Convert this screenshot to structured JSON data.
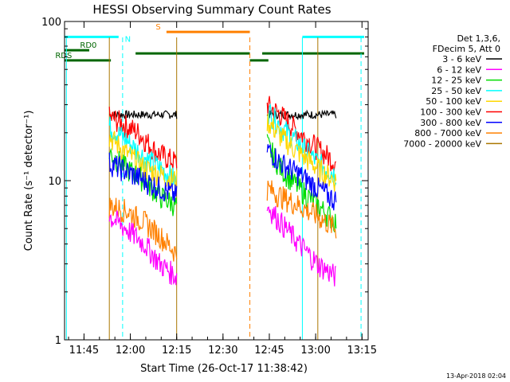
{
  "chart_data": {
    "type": "line",
    "title": "HESSI Observing Summary Count Rates",
    "xlabel": "Start Time (26-Oct-17 11:38:42)",
    "ylabel": "Count Rate (s⁻¹ detector⁻¹)",
    "ylog": true,
    "ylim": [
      1,
      100
    ],
    "xlim": [
      "11:38:42",
      "13:17:00"
    ],
    "x_unit": "minutes since 11:38:42",
    "x_range_min": [
      0,
      98.3
    ],
    "x_ticks": [
      {
        "label": "11:45",
        "t": 6.3
      },
      {
        "label": "12:00",
        "t": 21.3
      },
      {
        "label": "12:15",
        "t": 36.3
      },
      {
        "label": "12:30",
        "t": 51.3
      },
      {
        "label": "12:45",
        "t": 66.3
      },
      {
        "label": "13:00",
        "t": 81.3
      },
      {
        "label": "13:15",
        "t": 96.3
      }
    ],
    "y_ticks": [
      {
        "label": "1",
        "v": 1
      },
      {
        "label": "10",
        "v": 10
      },
      {
        "label": "100",
        "v": 100
      }
    ],
    "legend": {
      "placement": "right",
      "header": [
        "Det 1,3,6,",
        "FDecim 5, Att 0"
      ],
      "entries": [
        {
          "label": "3 - 6 keV",
          "color": "#000000"
        },
        {
          "label": "6 - 12 keV",
          "color": "#ff00ff"
        },
        {
          "label": "12 - 25 keV",
          "color": "#00dd00"
        },
        {
          "label": "25 - 50 keV",
          "color": "#00ffff"
        },
        {
          "label": "50 - 100 keV",
          "color": "#ffd700"
        },
        {
          "label": "100 - 300 keV",
          "color": "#ff0000"
        },
        {
          "label": "300 - 800 keV",
          "color": "#0000ff"
        },
        {
          "label": "800 - 7000 keV",
          "color": "#ff8000"
        },
        {
          "label": "7000 - 20000 keV",
          "color": "#aa7700"
        }
      ]
    },
    "intervals": [
      {
        "start": 14.5,
        "end": 36.3
      },
      {
        "start": 65.6,
        "end": 87.9
      }
    ],
    "series": [
      {
        "name": "3 - 6 keV",
        "color": "#000000",
        "segments": [
          [
            [
              14.5,
              26
            ],
            [
              36.3,
              26
            ]
          ],
          [
            [
              65.6,
              26
            ],
            [
              87.9,
              26
            ]
          ]
        ]
      },
      {
        "name": "100 - 300 keV",
        "color": "#ff0000",
        "segments": [
          [
            [
              14.5,
              25
            ],
            [
              17,
              24
            ],
            [
              24,
              20
            ],
            [
              30,
              15
            ],
            [
              36.3,
              13
            ]
          ],
          [
            [
              65.6,
              30
            ],
            [
              70,
              26
            ],
            [
              76,
              20
            ],
            [
              82,
              16
            ],
            [
              87.9,
              13
            ]
          ]
        ]
      },
      {
        "name": "25 - 50 keV",
        "color": "#00ffff",
        "segments": [
          [
            [
              14.5,
              22
            ],
            [
              20,
              18
            ],
            [
              26,
              14
            ],
            [
              31,
              12
            ],
            [
              36.3,
              10
            ]
          ],
          [
            [
              65.6,
              28
            ],
            [
              70,
              22
            ],
            [
              76,
              17
            ],
            [
              82,
              13
            ],
            [
              87.9,
              11
            ]
          ]
        ]
      },
      {
        "name": "50 - 100 keV",
        "color": "#ffd700",
        "segments": [
          [
            [
              14.5,
              19
            ],
            [
              20,
              15
            ],
            [
              26,
              12
            ],
            [
              36.3,
              10
            ]
          ],
          [
            [
              65.6,
              24
            ],
            [
              70,
              19
            ],
            [
              76,
              15
            ],
            [
              82,
              12
            ],
            [
              87.9,
              10
            ]
          ]
        ]
      },
      {
        "name": "12 - 25 keV",
        "color": "#00dd00",
        "segments": [
          [
            [
              14.5,
              15
            ],
            [
              20,
              12
            ],
            [
              26,
              10
            ],
            [
              31,
              8
            ],
            [
              36.3,
              7
            ]
          ],
          [
            [
              65.6,
              17
            ],
            [
              70,
              12
            ],
            [
              76,
              9
            ],
            [
              82,
              7
            ],
            [
              87.9,
              5.5
            ]
          ]
        ]
      },
      {
        "name": "300 - 800 keV",
        "color": "#0000ff",
        "segments": [
          [
            [
              14.5,
              13
            ],
            [
              20,
              11.5
            ],
            [
              26,
              10
            ],
            [
              31,
              9
            ],
            [
              36.3,
              8
            ]
          ],
          [
            [
              65.6,
              16
            ],
            [
              70,
              13
            ],
            [
              76,
              11
            ],
            [
              82,
              9
            ],
            [
              87.9,
              7.5
            ]
          ]
        ]
      },
      {
        "name": "800 - 7000 keV",
        "color": "#ff8000",
        "segments": [
          [
            [
              14.5,
              7
            ],
            [
              20,
              6.5
            ],
            [
              26,
              5.5
            ],
            [
              31,
              4.5
            ],
            [
              36.3,
              3.5
            ]
          ],
          [
            [
              65.6,
              9
            ],
            [
              70,
              8
            ],
            [
              76,
              7
            ],
            [
              82,
              6
            ],
            [
              87.9,
              5
            ]
          ]
        ]
      },
      {
        "name": "6 - 12 keV",
        "color": "#ff00ff",
        "segments": [
          [
            [
              14.5,
              6
            ],
            [
              20,
              5
            ],
            [
              26,
              4
            ],
            [
              31,
              3
            ],
            [
              36.3,
              2.5
            ]
          ],
          [
            [
              65.6,
              7
            ],
            [
              70,
              5.5
            ],
            [
              76,
              4
            ],
            [
              82,
              3
            ],
            [
              87.9,
              2.5
            ]
          ]
        ]
      }
    ],
    "flag_bars": [
      {
        "label": "",
        "color": "#00ffff",
        "y": 80,
        "segments": [
          [
            0,
            17.5
          ],
          [
            77,
            97
          ]
        ]
      },
      {
        "label": "N",
        "color": "#00ffff",
        "y": 72,
        "segments": []
      },
      {
        "label": "S",
        "color": "#ff8000",
        "y": 86,
        "segments": [
          [
            33,
            60
          ]
        ]
      },
      {
        "label": "RD0",
        "color": "#006600",
        "y": 66,
        "segments": [
          [
            0,
            8
          ]
        ]
      },
      {
        "label": "RDS",
        "color": "#006600",
        "y": 57,
        "segments": [
          [
            0,
            15
          ]
        ]
      },
      {
        "label": "",
        "color": "#006600",
        "y": 63,
        "segments": [
          [
            23,
            60
          ],
          [
            64,
            97
          ]
        ]
      },
      {
        "label": "",
        "color": "#006600",
        "y": 57,
        "segments": [
          [
            60,
            66
          ]
        ]
      }
    ],
    "vlines": [
      {
        "t": 14.5,
        "color": "#aa7700",
        "dashed": false
      },
      {
        "t": 18.8,
        "color": "#00ffff",
        "dashed": true
      },
      {
        "t": 36.3,
        "color": "#aa7700",
        "dashed": false
      },
      {
        "t": 60.0,
        "color": "#ff8000",
        "dashed": true
      },
      {
        "t": 77.0,
        "color": "#00ffff",
        "dashed": false
      },
      {
        "t": 82.0,
        "color": "#aa7700",
        "dashed": false
      },
      {
        "t": 96.0,
        "color": "#00ffff",
        "dashed": true
      },
      {
        "t": 0.6,
        "color": "#00ffff",
        "dashed": false
      }
    ],
    "stamp": "13-Apr-2018 02:04"
  }
}
